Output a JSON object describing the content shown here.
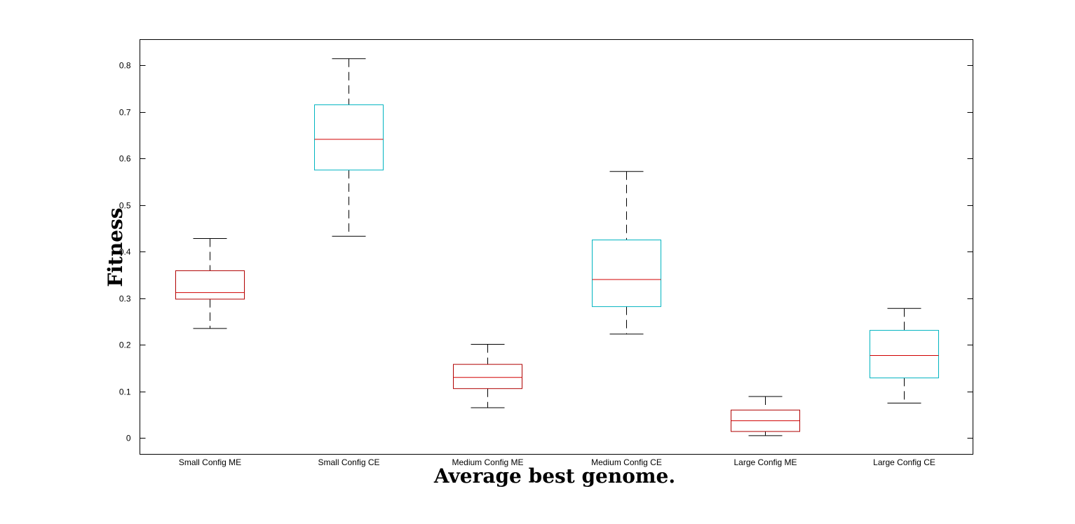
{
  "chart_data": {
    "type": "box",
    "title": "",
    "xlabel": "Average best genome.",
    "ylabel": "Fitness",
    "ylim": [
      -0.035,
      0.855
    ],
    "yticks": [
      "0",
      "0.1",
      "0.2",
      "0.3",
      "0.4",
      "0.5",
      "0.6",
      "0.7",
      "0.8"
    ],
    "categories": [
      "Small Config ME",
      "Small Config CE",
      "Medium Config ME",
      "Medium Config CE",
      "Large Config ME",
      "Large Config CE"
    ],
    "boxes": [
      {
        "label": "Small Config ME",
        "whisker_low": 0.235,
        "q1": 0.298,
        "median": 0.312,
        "q3": 0.359,
        "whisker_high": 0.428,
        "color": "#b00000"
      },
      {
        "label": "Small Config CE",
        "whisker_low": 0.433,
        "q1": 0.575,
        "median": 0.641,
        "q3": 0.715,
        "whisker_high": 0.814,
        "color": "#00b4c0"
      },
      {
        "label": "Medium Config ME",
        "whisker_low": 0.065,
        "q1": 0.106,
        "median": 0.13,
        "q3": 0.158,
        "whisker_high": 0.201,
        "color": "#b00000"
      },
      {
        "label": "Medium Config CE",
        "whisker_low": 0.223,
        "q1": 0.282,
        "median": 0.34,
        "q3": 0.425,
        "whisker_high": 0.572,
        "color": "#00b4c0"
      },
      {
        "label": "Large Config ME",
        "whisker_low": 0.005,
        "q1": 0.014,
        "median": 0.037,
        "q3": 0.06,
        "whisker_high": 0.089,
        "color": "#b00000"
      },
      {
        "label": "Large Config CE",
        "whisker_low": 0.075,
        "q1": 0.129,
        "median": 0.177,
        "q3": 0.231,
        "whisker_high": 0.278,
        "color": "#00b4c0"
      }
    ],
    "median_color": "#d00000",
    "whisker_color": "#000000",
    "grid": false
  }
}
